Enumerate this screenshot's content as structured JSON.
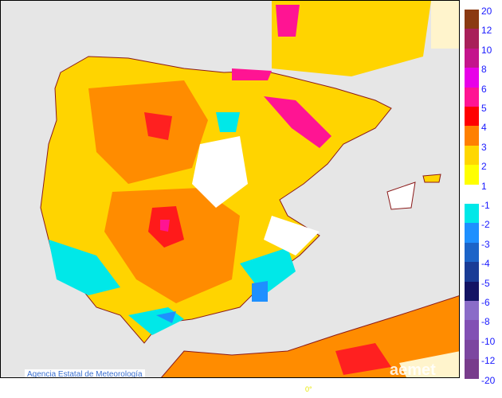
{
  "map": {
    "credit": "Agencia Estatal de Meteorología",
    "logo": "aemet",
    "longitude_label": "0°"
  },
  "legend": {
    "positive": [
      {
        "label": "20",
        "color": "#8b3a12"
      },
      {
        "label": "12",
        "color": "#a8205a"
      },
      {
        "label": "10",
        "color": "#c4148c"
      },
      {
        "label": "8",
        "color": "#e800e8"
      },
      {
        "label": "6",
        "color": "#ff1493"
      },
      {
        "label": "5",
        "color": "#ff0000"
      },
      {
        "label": "4",
        "color": "#ff8000"
      },
      {
        "label": "3",
        "color": "#ffd700"
      },
      {
        "label": "2",
        "color": "#ffff00"
      }
    ],
    "positive_bottom": "1",
    "negative": [
      {
        "label": "-1",
        "color": "#00e8e8"
      },
      {
        "label": "-2",
        "color": "#1e90ff"
      },
      {
        "label": "-3",
        "color": "#1c64c8"
      },
      {
        "label": "-4",
        "color": "#1a3c96"
      },
      {
        "label": "-5",
        "color": "#141464"
      },
      {
        "label": "-6",
        "color": "#8a6cc8"
      },
      {
        "label": "-8",
        "color": "#8250b4"
      },
      {
        "label": "-10",
        "color": "#7c46a0"
      },
      {
        "label": "-12",
        "color": "#783c8c"
      }
    ],
    "negative_bottom": "-20"
  }
}
